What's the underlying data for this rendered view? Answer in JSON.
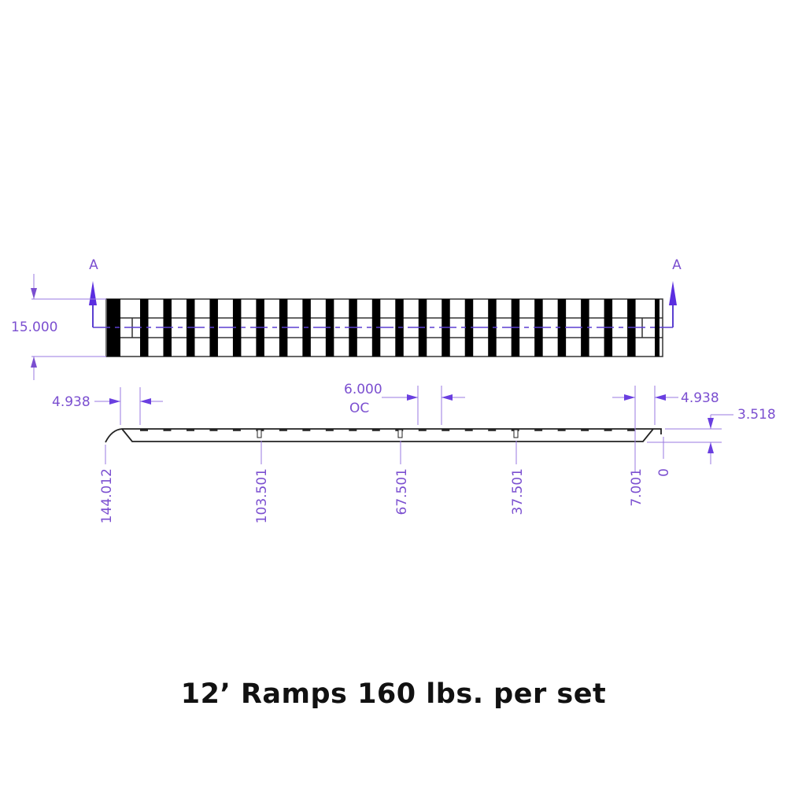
{
  "colors": {
    "dimension": "#7b4fd0",
    "arrow": "#5b2ee0",
    "part": "#000000"
  },
  "section_markers": [
    "A",
    "A"
  ],
  "dimensions": {
    "width": "15.000",
    "left_offset": "4.938",
    "right_offset": "4.938",
    "spacing": "6.000",
    "spacing_note": "OC",
    "height": "3.518"
  },
  "ordinates": [
    "144.012",
    "103.501",
    "67.501",
    "37.501",
    "7.001",
    "0"
  ],
  "title": "12’ Ramps 160 lbs. per set"
}
